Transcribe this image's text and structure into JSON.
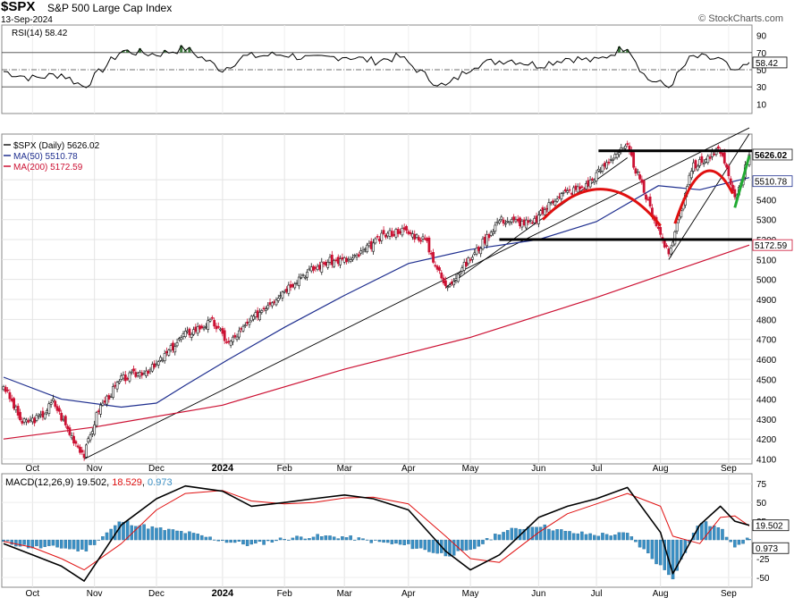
{
  "header": {
    "symbol": "$SPX",
    "name": "S&P 500 Large Cap Index",
    "date": "13-Sep-2024",
    "watermark": "© StockCharts.com"
  },
  "colors": {
    "price_up": "#1a1a1a",
    "price_down": "#cc1133",
    "ma50": "#1f2f8f",
    "ma200": "#cc1133",
    "rsi_line": "#000000",
    "rsi_fill": "#3e7a3e",
    "macd_line": "#000000",
    "signal_line": "#e01010",
    "histogram": "#3a8fc4",
    "support": "#000000",
    "pattern": "#e01010",
    "breakout": "#22aa33"
  },
  "chart_data": [
    {
      "type": "line",
      "panel": "RSI",
      "legend": "RSI(14) 58.42",
      "ylim": [
        0,
        100
      ],
      "y_ticks": [
        10,
        30,
        50,
        70,
        90
      ],
      "reference_lines": [
        30,
        50,
        70
      ],
      "last_value_label": "58.42",
      "x_dates": [
        "2023-09-18",
        "2023-10-02",
        "2023-10-16",
        "2023-10-27",
        "2023-11-14",
        "2023-12-01",
        "2023-12-15",
        "2024-01-02",
        "2024-01-12",
        "2024-02-01",
        "2024-02-15",
        "2024-03-01",
        "2024-03-15",
        "2024-03-28",
        "2024-04-12",
        "2024-04-19",
        "2024-05-03",
        "2024-05-20",
        "2024-06-03",
        "2024-06-17",
        "2024-07-01",
        "2024-07-16",
        "2024-07-25",
        "2024-08-05",
        "2024-08-16",
        "2024-08-30",
        "2024-09-06",
        "2024-09-13"
      ],
      "values": [
        48,
        40,
        45,
        30,
        72,
        68,
        75,
        50,
        65,
        68,
        62,
        66,
        60,
        65,
        38,
        30,
        56,
        62,
        55,
        64,
        60,
        78,
        40,
        30,
        65,
        62,
        45,
        58.42
      ]
    },
    {
      "type": "candlestick",
      "panel": "price",
      "legend": [
        {
          "label": "$SPX (Daily) 5626.02"
        },
        {
          "label": "MA(50) 5510.78"
        },
        {
          "label": "MA(200) 5172.59"
        }
      ],
      "ylim": [
        4080,
        5720
      ],
      "y_ticks": [
        4100,
        4200,
        4300,
        4400,
        4500,
        4600,
        4700,
        4800,
        4900,
        5000,
        5100,
        5200,
        5300,
        5400,
        5500
      ],
      "x_tick_labels": [
        {
          "label": "Oct",
          "date": "2023-10-02",
          "bold": false
        },
        {
          "label": "Nov",
          "date": "2023-11-01",
          "bold": false
        },
        {
          "label": "Dec",
          "date": "2023-12-01",
          "bold": false
        },
        {
          "label": "2024",
          "date": "2024-01-02",
          "bold": true
        },
        {
          "label": "Feb",
          "date": "2024-02-01",
          "bold": false
        },
        {
          "label": "Mar",
          "date": "2024-03-01",
          "bold": false
        },
        {
          "label": "Apr",
          "date": "2024-04-01",
          "bold": false
        },
        {
          "label": "May",
          "date": "2024-05-01",
          "bold": false
        },
        {
          "label": "Jun",
          "date": "2024-06-03",
          "bold": false
        },
        {
          "label": "Jul",
          "date": "2024-07-01",
          "bold": false
        },
        {
          "label": "Aug",
          "date": "2024-08-01",
          "bold": false
        },
        {
          "label": "Sep",
          "date": "2024-09-03",
          "bold": false
        }
      ],
      "close_path": {
        "dates": [
          "2023-09-18",
          "2023-09-27",
          "2023-10-06",
          "2023-10-12",
          "2023-10-20",
          "2023-10-27",
          "2023-11-03",
          "2023-11-14",
          "2023-11-30",
          "2023-12-14",
          "2023-12-28",
          "2024-01-05",
          "2024-01-22",
          "2024-02-09",
          "2024-02-22",
          "2024-03-05",
          "2024-03-20",
          "2024-03-28",
          "2024-04-09",
          "2024-04-19",
          "2024-05-03",
          "2024-05-15",
          "2024-05-31",
          "2024-06-12",
          "2024-06-26",
          "2024-07-10",
          "2024-07-16",
          "2024-07-24",
          "2024-08-05",
          "2024-08-16",
          "2024-08-30",
          "2024-09-06",
          "2024-09-13"
        ],
        "values": [
          4470,
          4280,
          4310,
          4390,
          4230,
          4120,
          4350,
          4500,
          4560,
          4720,
          4790,
          4680,
          4860,
          5020,
          5090,
          5100,
          5220,
          5250,
          5200,
          4960,
          5130,
          5300,
          5280,
          5420,
          5470,
          5630,
          5660,
          5440,
          5120,
          5560,
          5650,
          5400,
          5626.02
        ]
      },
      "ma50": {
        "legend_value": 5510.78,
        "dates": [
          "2023-09-18",
          "2023-10-16",
          "2023-11-14",
          "2023-12-01",
          "2023-12-15",
          "2024-01-05",
          "2024-02-01",
          "2024-03-01",
          "2024-04-01",
          "2024-05-01",
          "2024-06-03",
          "2024-07-01",
          "2024-07-31",
          "2024-08-20",
          "2024-09-13"
        ],
        "values": [
          4510,
          4400,
          4360,
          4380,
          4470,
          4600,
          4760,
          4920,
          5080,
          5150,
          5200,
          5290,
          5470,
          5450,
          5510.78
        ]
      },
      "ma200": {
        "legend_value": 5172.59,
        "dates": [
          "2023-09-18",
          "2023-11-01",
          "2024-01-02",
          "2024-03-01",
          "2024-05-01",
          "2024-07-01",
          "2024-09-13"
        ],
        "values": [
          4200,
          4260,
          4370,
          4550,
          4710,
          4910,
          5172.59
        ]
      },
      "support_lines": [
        5645,
        5200
      ],
      "last_value_labels": [
        "5626.02",
        "5510.78",
        "5172.59"
      ]
    },
    {
      "type": "line",
      "panel": "MACD",
      "legend": [
        {
          "label": "MACD(12,26,9)",
          "value": "19.502"
        },
        {
          "label": "18.529"
        },
        {
          "label": "0.973"
        }
      ],
      "ylim": [
        -62,
        86
      ],
      "y_ticks": [
        -50,
        -25,
        25,
        50,
        75
      ],
      "last_value_labels": [
        "19.502",
        "0.973"
      ],
      "macd": {
        "dates": [
          "2023-09-18",
          "2023-10-02",
          "2023-10-16",
          "2023-10-27",
          "2023-11-14",
          "2023-12-01",
          "2023-12-15",
          "2024-01-02",
          "2024-01-16",
          "2024-02-01",
          "2024-02-15",
          "2024-03-01",
          "2024-03-15",
          "2024-04-01",
          "2024-04-19",
          "2024-05-01",
          "2024-05-15",
          "2024-06-03",
          "2024-06-17",
          "2024-07-01",
          "2024-07-16",
          "2024-08-01",
          "2024-08-07",
          "2024-08-20",
          "2024-08-30",
          "2024-09-06",
          "2024-09-13"
        ],
        "values": [
          -5,
          -20,
          -35,
          -55,
          20,
          55,
          72,
          65,
          45,
          50,
          55,
          60,
          55,
          40,
          -15,
          -40,
          -20,
          30,
          45,
          55,
          70,
          10,
          -45,
          20,
          45,
          25,
          19.502
        ]
      },
      "signal": {
        "dates": [
          "2023-09-18",
          "2023-10-02",
          "2023-10-16",
          "2023-10-27",
          "2023-11-14",
          "2023-12-01",
          "2023-12-15",
          "2024-01-02",
          "2024-01-16",
          "2024-02-01",
          "2024-02-15",
          "2024-03-01",
          "2024-03-15",
          "2024-04-01",
          "2024-04-19",
          "2024-05-01",
          "2024-05-15",
          "2024-06-03",
          "2024-06-17",
          "2024-07-01",
          "2024-07-16",
          "2024-08-01",
          "2024-08-07",
          "2024-08-20",
          "2024-08-30",
          "2024-09-06",
          "2024-09-13"
        ],
        "values": [
          -2,
          -10,
          -25,
          -40,
          -5,
          40,
          62,
          66,
          52,
          48,
          50,
          56,
          57,
          48,
          5,
          -25,
          -30,
          10,
          35,
          48,
          62,
          45,
          5,
          -5,
          30,
          32,
          18.529
        ]
      },
      "histogram": {
        "dates": [
          "2023-09-18",
          "2023-10-02",
          "2023-10-16",
          "2023-10-27",
          "2023-11-14",
          "2023-12-01",
          "2023-12-15",
          "2024-01-02",
          "2024-01-16",
          "2024-02-01",
          "2024-02-15",
          "2024-03-01",
          "2024-03-15",
          "2024-04-01",
          "2024-04-19",
          "2024-05-01",
          "2024-05-15",
          "2024-06-03",
          "2024-06-17",
          "2024-07-01",
          "2024-07-16",
          "2024-08-01",
          "2024-08-07",
          "2024-08-20",
          "2024-08-30",
          "2024-09-06",
          "2024-09-13"
        ],
        "values": [
          -3,
          -10,
          -10,
          -15,
          25,
          15,
          10,
          -1,
          -7,
          2,
          5,
          4,
          -2,
          -8,
          -20,
          -15,
          10,
          20,
          10,
          7,
          8,
          -35,
          -50,
          25,
          15,
          -7,
          0.973
        ]
      }
    }
  ]
}
